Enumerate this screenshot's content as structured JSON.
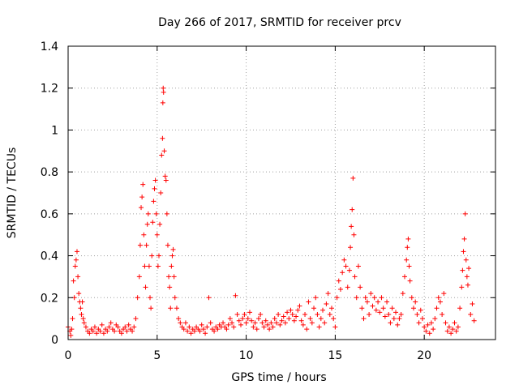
{
  "chart_data": {
    "type": "scatter",
    "title": "Day 266 of 2017, SRMTID for receiver prcv",
    "xlabel": "GPS time / hours",
    "ylabel": "SRMTID / TECUs",
    "xlim": [
      0,
      24
    ],
    "ylim": [
      0,
      1.4
    ],
    "xticks": [
      0,
      5,
      10,
      15,
      20
    ],
    "yticks": [
      0,
      0.2,
      0.4,
      0.6,
      0.8,
      1,
      1.2,
      1.4
    ],
    "grid": true,
    "marker": "+",
    "color": "#ff0000",
    "series": [
      {
        "name": "prcv",
        "points": [
          [
            0.0,
            0.06
          ],
          [
            0.1,
            0.04
          ],
          [
            0.15,
            0.02
          ],
          [
            0.2,
            0.05
          ],
          [
            0.25,
            0.1
          ],
          [
            0.3,
            0.28
          ],
          [
            0.35,
            0.2
          ],
          [
            0.4,
            0.35
          ],
          [
            0.45,
            0.38
          ],
          [
            0.5,
            0.42
          ],
          [
            0.55,
            0.3
          ],
          [
            0.6,
            0.22
          ],
          [
            0.65,
            0.18
          ],
          [
            0.7,
            0.15
          ],
          [
            0.75,
            0.12
          ],
          [
            0.8,
            0.18
          ],
          [
            0.85,
            0.1
          ],
          [
            0.9,
            0.08
          ],
          [
            1.0,
            0.06
          ],
          [
            1.1,
            0.04
          ],
          [
            1.2,
            0.03
          ],
          [
            1.3,
            0.05
          ],
          [
            1.4,
            0.04
          ],
          [
            1.5,
            0.06
          ],
          [
            1.6,
            0.03
          ],
          [
            1.7,
            0.05
          ],
          [
            1.8,
            0.04
          ],
          [
            1.9,
            0.07
          ],
          [
            2.0,
            0.03
          ],
          [
            2.1,
            0.05
          ],
          [
            2.2,
            0.04
          ],
          [
            2.3,
            0.06
          ],
          [
            2.4,
            0.08
          ],
          [
            2.5,
            0.05
          ],
          [
            2.6,
            0.04
          ],
          [
            2.7,
            0.07
          ],
          [
            2.8,
            0.06
          ],
          [
            2.9,
            0.04
          ],
          [
            3.0,
            0.03
          ],
          [
            3.1,
            0.05
          ],
          [
            3.2,
            0.06
          ],
          [
            3.3,
            0.04
          ],
          [
            3.4,
            0.07
          ],
          [
            3.5,
            0.05
          ],
          [
            3.6,
            0.04
          ],
          [
            3.7,
            0.06
          ],
          [
            3.8,
            0.1
          ],
          [
            3.9,
            0.2
          ],
          [
            4.0,
            0.3
          ],
          [
            4.05,
            0.45
          ],
          [
            4.1,
            0.63
          ],
          [
            4.15,
            0.68
          ],
          [
            4.2,
            0.74
          ],
          [
            4.25,
            0.5
          ],
          [
            4.3,
            0.35
          ],
          [
            4.35,
            0.25
          ],
          [
            4.4,
            0.45
          ],
          [
            4.45,
            0.55
          ],
          [
            4.5,
            0.6
          ],
          [
            4.55,
            0.35
          ],
          [
            4.6,
            0.2
          ],
          [
            4.65,
            0.15
          ],
          [
            4.7,
            0.4
          ],
          [
            4.75,
            0.56
          ],
          [
            4.8,
            0.66
          ],
          [
            4.85,
            0.72
          ],
          [
            4.9,
            0.76
          ],
          [
            4.95,
            0.6
          ],
          [
            5.0,
            0.5
          ],
          [
            5.05,
            0.35
          ],
          [
            5.1,
            0.4
          ],
          [
            5.15,
            0.55
          ],
          [
            5.2,
            0.7
          ],
          [
            5.25,
            0.88
          ],
          [
            5.3,
            0.96
          ],
          [
            5.32,
            1.13
          ],
          [
            5.34,
            1.2
          ],
          [
            5.36,
            1.18
          ],
          [
            5.4,
            0.9
          ],
          [
            5.45,
            0.78
          ],
          [
            5.5,
            0.76
          ],
          [
            5.55,
            0.6
          ],
          [
            5.6,
            0.45
          ],
          [
            5.65,
            0.3
          ],
          [
            5.7,
            0.25
          ],
          [
            5.75,
            0.15
          ],
          [
            5.8,
            0.35
          ],
          [
            5.85,
            0.4
          ],
          [
            5.9,
            0.43
          ],
          [
            5.95,
            0.3
          ],
          [
            6.0,
            0.2
          ],
          [
            6.1,
            0.15
          ],
          [
            6.2,
            0.1
          ],
          [
            6.3,
            0.08
          ],
          [
            6.4,
            0.06
          ],
          [
            6.5,
            0.05
          ],
          [
            6.6,
            0.08
          ],
          [
            6.7,
            0.04
          ],
          [
            6.8,
            0.06
          ],
          [
            6.9,
            0.03
          ],
          [
            7.0,
            0.05
          ],
          [
            7.1,
            0.04
          ],
          [
            7.2,
            0.06
          ],
          [
            7.3,
            0.05
          ],
          [
            7.4,
            0.04
          ],
          [
            7.5,
            0.07
          ],
          [
            7.6,
            0.05
          ],
          [
            7.7,
            0.03
          ],
          [
            7.8,
            0.06
          ],
          [
            7.9,
            0.2
          ],
          [
            8.0,
            0.08
          ],
          [
            8.1,
            0.05
          ],
          [
            8.2,
            0.04
          ],
          [
            8.3,
            0.06
          ],
          [
            8.4,
            0.05
          ],
          [
            8.5,
            0.07
          ],
          [
            8.6,
            0.06
          ],
          [
            8.7,
            0.08
          ],
          [
            8.8,
            0.06
          ],
          [
            8.9,
            0.05
          ],
          [
            9.0,
            0.07
          ],
          [
            9.1,
            0.1
          ],
          [
            9.2,
            0.08
          ],
          [
            9.3,
            0.06
          ],
          [
            9.4,
            0.21
          ],
          [
            9.5,
            0.12
          ],
          [
            9.6,
            0.09
          ],
          [
            9.7,
            0.07
          ],
          [
            9.8,
            0.1
          ],
          [
            9.9,
            0.12
          ],
          [
            10.0,
            0.08
          ],
          [
            10.1,
            0.1
          ],
          [
            10.2,
            0.13
          ],
          [
            10.3,
            0.09
          ],
          [
            10.4,
            0.06
          ],
          [
            10.5,
            0.08
          ],
          [
            10.6,
            0.05
          ],
          [
            10.7,
            0.1
          ],
          [
            10.8,
            0.12
          ],
          [
            10.9,
            0.08
          ],
          [
            11.0,
            0.06
          ],
          [
            11.1,
            0.09
          ],
          [
            11.2,
            0.07
          ],
          [
            11.3,
            0.05
          ],
          [
            11.4,
            0.08
          ],
          [
            11.5,
            0.06
          ],
          [
            11.6,
            0.1
          ],
          [
            11.7,
            0.08
          ],
          [
            11.8,
            0.12
          ],
          [
            11.9,
            0.07
          ],
          [
            12.0,
            0.09
          ],
          [
            12.1,
            0.11
          ],
          [
            12.2,
            0.08
          ],
          [
            12.3,
            0.13
          ],
          [
            12.4,
            0.1
          ],
          [
            12.5,
            0.14
          ],
          [
            12.6,
            0.12
          ],
          [
            12.7,
            0.09
          ],
          [
            12.8,
            0.11
          ],
          [
            12.9,
            0.14
          ],
          [
            13.0,
            0.16
          ],
          [
            13.1,
            0.09
          ],
          [
            13.2,
            0.07
          ],
          [
            13.3,
            0.12
          ],
          [
            13.4,
            0.05
          ],
          [
            13.5,
            0.18
          ],
          [
            13.6,
            0.1
          ],
          [
            13.7,
            0.08
          ],
          [
            13.8,
            0.15
          ],
          [
            13.9,
            0.2
          ],
          [
            14.0,
            0.12
          ],
          [
            14.1,
            0.06
          ],
          [
            14.2,
            0.1
          ],
          [
            14.3,
            0.14
          ],
          [
            14.4,
            0.08
          ],
          [
            14.5,
            0.17
          ],
          [
            14.6,
            0.22
          ],
          [
            14.7,
            0.12
          ],
          [
            14.8,
            0.15
          ],
          [
            14.9,
            0.1
          ],
          [
            15.0,
            0.06
          ],
          [
            15.1,
            0.2
          ],
          [
            15.2,
            0.28
          ],
          [
            15.3,
            0.24
          ],
          [
            15.4,
            0.32
          ],
          [
            15.5,
            0.38
          ],
          [
            15.6,
            0.35
          ],
          [
            15.7,
            0.25
          ],
          [
            15.8,
            0.33
          ],
          [
            15.85,
            0.44
          ],
          [
            15.9,
            0.54
          ],
          [
            15.95,
            0.62
          ],
          [
            16.0,
            0.77
          ],
          [
            16.05,
            0.5
          ],
          [
            16.1,
            0.3
          ],
          [
            16.2,
            0.2
          ],
          [
            16.3,
            0.35
          ],
          [
            16.4,
            0.25
          ],
          [
            16.5,
            0.15
          ],
          [
            16.6,
            0.1
          ],
          [
            16.7,
            0.2
          ],
          [
            16.8,
            0.18
          ],
          [
            16.9,
            0.12
          ],
          [
            17.0,
            0.22
          ],
          [
            17.1,
            0.16
          ],
          [
            17.2,
            0.2
          ],
          [
            17.3,
            0.14
          ],
          [
            17.4,
            0.18
          ],
          [
            17.5,
            0.13
          ],
          [
            17.6,
            0.2
          ],
          [
            17.7,
            0.15
          ],
          [
            17.8,
            0.11
          ],
          [
            17.9,
            0.18
          ],
          [
            18.0,
            0.12
          ],
          [
            18.1,
            0.08
          ],
          [
            18.2,
            0.15
          ],
          [
            18.3,
            0.1
          ],
          [
            18.4,
            0.13
          ],
          [
            18.5,
            0.07
          ],
          [
            18.6,
            0.1
          ],
          [
            18.7,
            0.12
          ],
          [
            18.8,
            0.22
          ],
          [
            18.9,
            0.3
          ],
          [
            19.0,
            0.38
          ],
          [
            19.05,
            0.44
          ],
          [
            19.1,
            0.48
          ],
          [
            19.15,
            0.35
          ],
          [
            19.2,
            0.28
          ],
          [
            19.3,
            0.2
          ],
          [
            19.4,
            0.15
          ],
          [
            19.5,
            0.18
          ],
          [
            19.6,
            0.12
          ],
          [
            19.7,
            0.08
          ],
          [
            19.8,
            0.14
          ],
          [
            19.9,
            0.1
          ],
          [
            20.0,
            0.06
          ],
          [
            20.1,
            0.04
          ],
          [
            20.2,
            0.07
          ],
          [
            20.3,
            0.03
          ],
          [
            20.4,
            0.08
          ],
          [
            20.5,
            0.05
          ],
          [
            20.6,
            0.1
          ],
          [
            20.7,
            0.15
          ],
          [
            20.8,
            0.2
          ],
          [
            20.9,
            0.18
          ],
          [
            21.0,
            0.12
          ],
          [
            21.1,
            0.22
          ],
          [
            21.2,
            0.08
          ],
          [
            21.3,
            0.04
          ],
          [
            21.4,
            0.06
          ],
          [
            21.5,
            0.03
          ],
          [
            21.6,
            0.05
          ],
          [
            21.7,
            0.08
          ],
          [
            21.8,
            0.04
          ],
          [
            21.9,
            0.06
          ],
          [
            22.0,
            0.15
          ],
          [
            22.1,
            0.25
          ],
          [
            22.15,
            0.33
          ],
          [
            22.2,
            0.42
          ],
          [
            22.25,
            0.48
          ],
          [
            22.3,
            0.6
          ],
          [
            22.35,
            0.38
          ],
          [
            22.4,
            0.3
          ],
          [
            22.45,
            0.26
          ],
          [
            22.5,
            0.34
          ],
          [
            22.6,
            0.12
          ],
          [
            22.7,
            0.17
          ],
          [
            22.8,
            0.09
          ]
        ]
      }
    ]
  }
}
